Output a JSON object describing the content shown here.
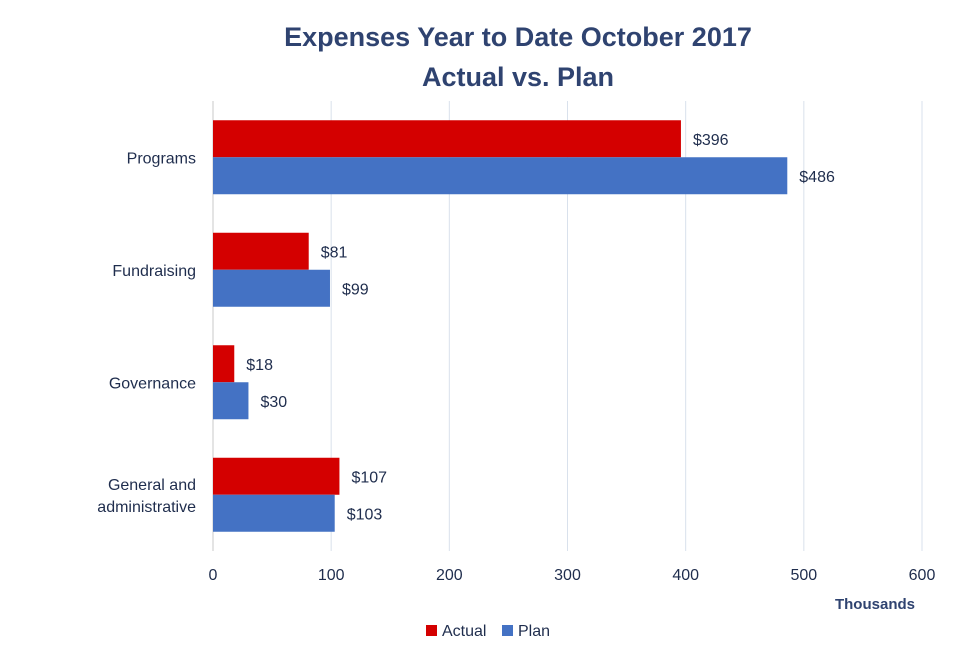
{
  "chart_data": {
    "type": "bar",
    "orientation": "horizontal",
    "title_line1": "Expenses Year to Date October 2017",
    "title_line2": "Actual vs. Plan",
    "categories": [
      "Programs",
      "Fundraising",
      "Governance",
      "General and administrative"
    ],
    "category_lines": [
      [
        "Programs"
      ],
      [
        "Fundraising"
      ],
      [
        "Governance"
      ],
      [
        "General and",
        "administrative"
      ]
    ],
    "series": [
      {
        "name": "Actual",
        "color": "#d40000",
        "values": [
          396,
          81,
          18,
          107
        ],
        "labels": [
          "$396",
          "$81",
          "$18",
          "$107"
        ]
      },
      {
        "name": "Plan",
        "color": "#4472c4",
        "values": [
          486,
          99,
          30,
          103
        ],
        "labels": [
          "$486",
          "$99",
          "$30",
          "$103"
        ]
      }
    ],
    "xlim": [
      0,
      600
    ],
    "xticks": [
      "0",
      "100",
      "200",
      "300",
      "400",
      "500",
      "600"
    ],
    "xtick_values": [
      0,
      100,
      200,
      300,
      400,
      500,
      600
    ],
    "xlabel": "Thousands",
    "ylabel": "",
    "grid": true,
    "legend_position": "bottom"
  }
}
